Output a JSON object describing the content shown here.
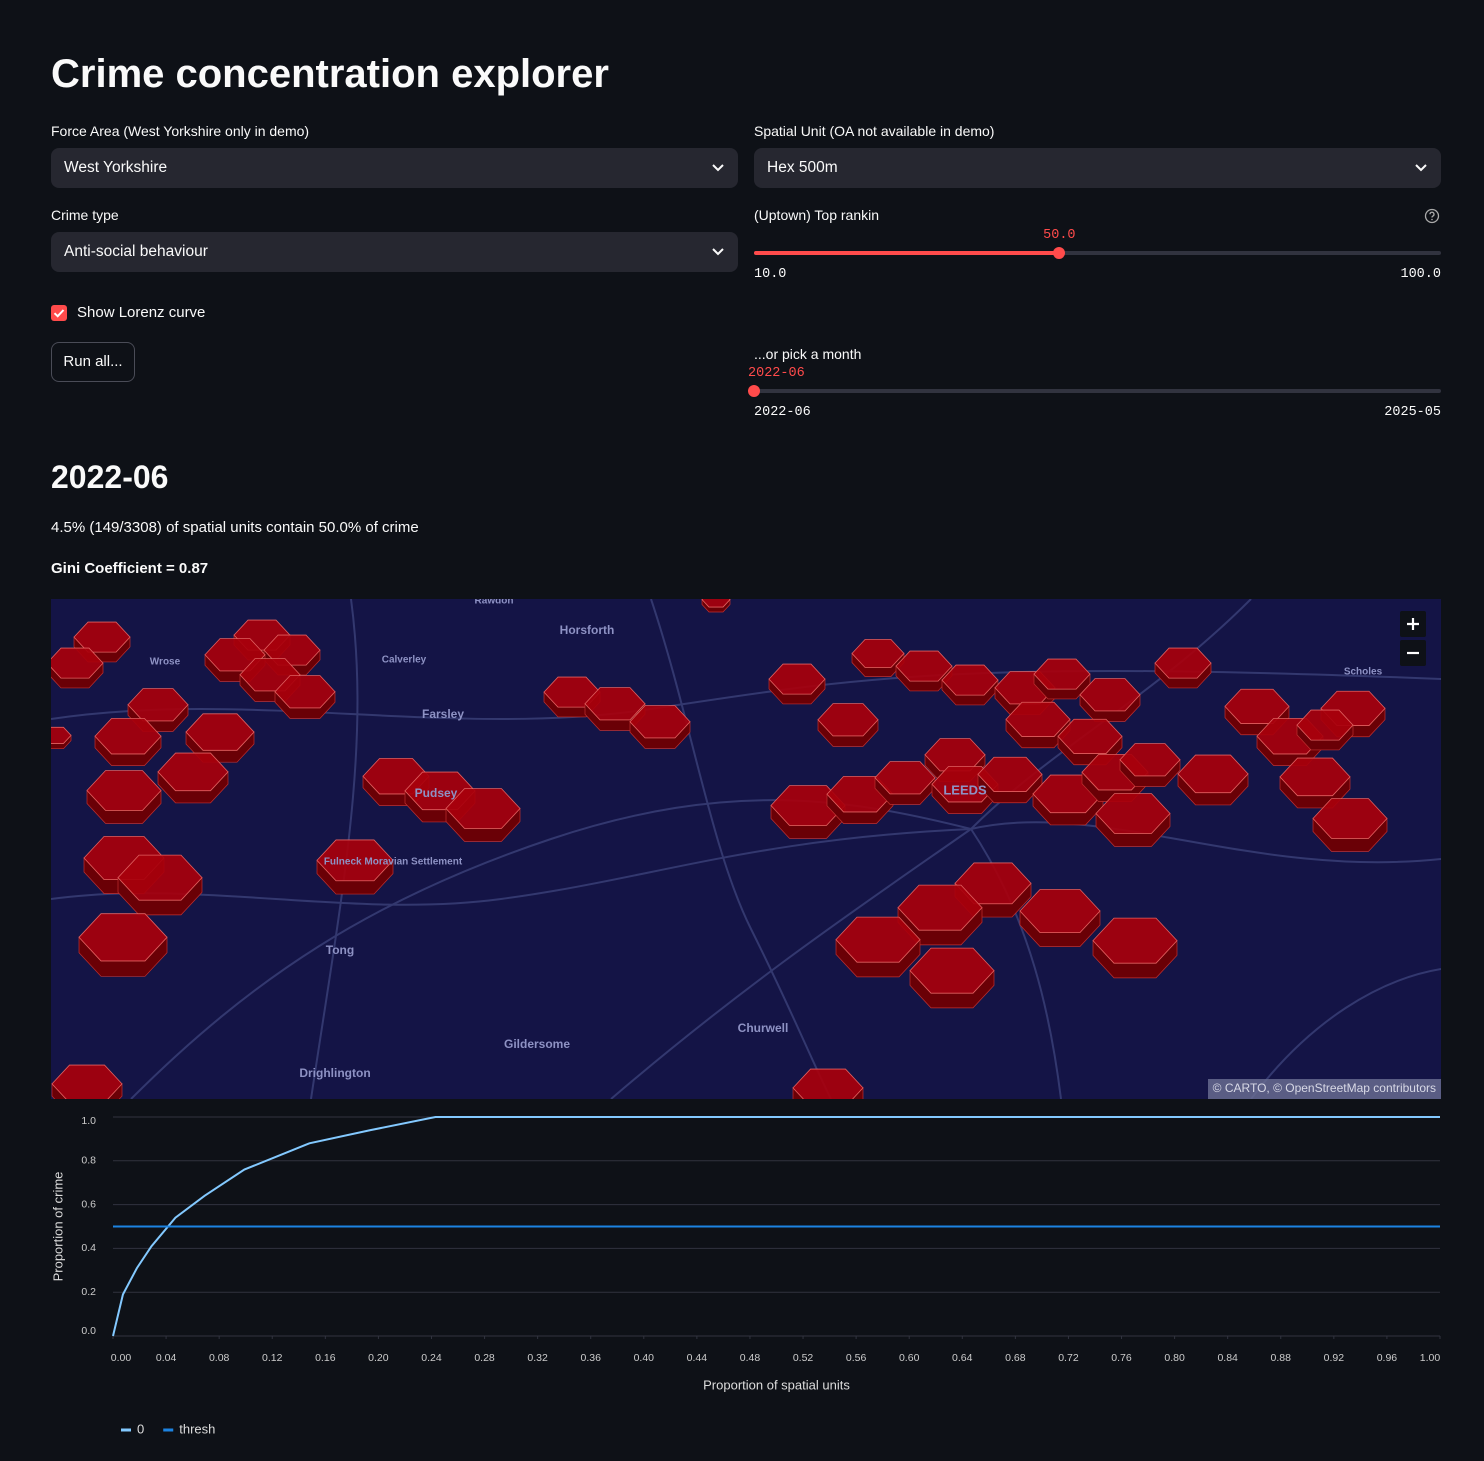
{
  "header": {
    "title": "Crime concentration explorer"
  },
  "controls": {
    "force_area": {
      "label": "Force Area (West Yorkshire only in demo)",
      "value": "West Yorkshire"
    },
    "spatial_unit": {
      "label": "Spatial Unit (OA not available in demo)",
      "value": "Hex 500m"
    },
    "crime_type": {
      "label": "Crime type",
      "value": "Anti-social behaviour"
    },
    "top_ranking": {
      "label": "(Uptown) Top rankin",
      "value": "50.0",
      "min": "10.0",
      "max": "100.0"
    },
    "lorenz_checkbox": {
      "label": "Show Lorenz curve",
      "checked": true
    },
    "run_button": {
      "label": "Run all..."
    },
    "month": {
      "label": "...or pick a month",
      "value": "2022-06",
      "min": "2022-06",
      "max": "2025-05"
    }
  },
  "results": {
    "heading": "2022-06",
    "summary": "4.5% (149/3308) of spatial units contain 50.0% of crime",
    "gini": "Gini Coefficient = 0.87"
  },
  "map": {
    "labels": [
      "Rawdon",
      "Horsforth",
      "Calverley",
      "Wrose",
      "Farsley",
      "Pudsey",
      "Fulneck Moravian Settlement",
      "LEEDS",
      "Scholes",
      "Tong",
      "Churwell",
      "Gildersome",
      "Drighlington"
    ],
    "attribution": "© CARTO, © OpenStreetMap contributors"
  },
  "chart_data": {
    "type": "line",
    "x_label": "Proportion of spatial units",
    "y_label": "Proportion of crime",
    "xlim": [
      0,
      1
    ],
    "ylim": [
      0,
      1
    ],
    "xticks": [
      {
        "value": 0,
        "label": "0.00"
      },
      {
        "value": 0.04,
        "label": "0.04"
      },
      {
        "value": 0.08,
        "label": "0.08"
      },
      {
        "value": 0.12,
        "label": "0.12"
      },
      {
        "value": 0.16,
        "label": "0.16"
      },
      {
        "value": 0.2,
        "label": "0.20"
      },
      {
        "value": 0.24,
        "label": "0.24"
      },
      {
        "value": 0.28,
        "label": "0.28"
      },
      {
        "value": 0.32,
        "label": "0.32"
      },
      {
        "value": 0.36,
        "label": "0.36"
      },
      {
        "value": 0.4,
        "label": "0.40"
      },
      {
        "value": 0.44,
        "label": "0.44"
      },
      {
        "value": 0.48,
        "label": "0.48"
      },
      {
        "value": 0.52,
        "label": "0.52"
      },
      {
        "value": 0.56,
        "label": "0.56"
      },
      {
        "value": 0.6,
        "label": "0.60"
      },
      {
        "value": 0.64,
        "label": "0.64"
      },
      {
        "value": 0.68,
        "label": "0.68"
      },
      {
        "value": 0.72,
        "label": "0.72"
      },
      {
        "value": 0.76,
        "label": "0.76"
      },
      {
        "value": 0.8,
        "label": "0.80"
      },
      {
        "value": 0.84,
        "label": "0.84"
      },
      {
        "value": 0.88,
        "label": "0.88"
      },
      {
        "value": 0.92,
        "label": "0.92"
      },
      {
        "value": 0.96,
        "label": "0.96"
      },
      {
        "value": 1,
        "label": "1.00"
      }
    ],
    "yticks": [
      {
        "value": 0,
        "label": "0.0"
      },
      0.2,
      0.4,
      0.6,
      0.8,
      {
        "value": 1,
        "label": "1.0"
      }
    ],
    "grid": true,
    "legend": "bottom-left",
    "series": [
      {
        "name": "0",
        "color": "#83c9ff",
        "x": [
          0,
          0.0075,
          0.018,
          0.029,
          0.047,
          0.069,
          0.099,
          0.148,
          0.194,
          0.243,
          1
        ],
        "values": [
          0,
          0.19,
          0.31,
          0.41,
          0.54,
          0.64,
          0.76,
          0.88,
          0.94,
          1,
          1
        ]
      },
      {
        "name": "thresh",
        "color": "#1c83e1",
        "x": [
          0,
          1
        ],
        "values": [
          0.5,
          0.5
        ]
      }
    ]
  }
}
